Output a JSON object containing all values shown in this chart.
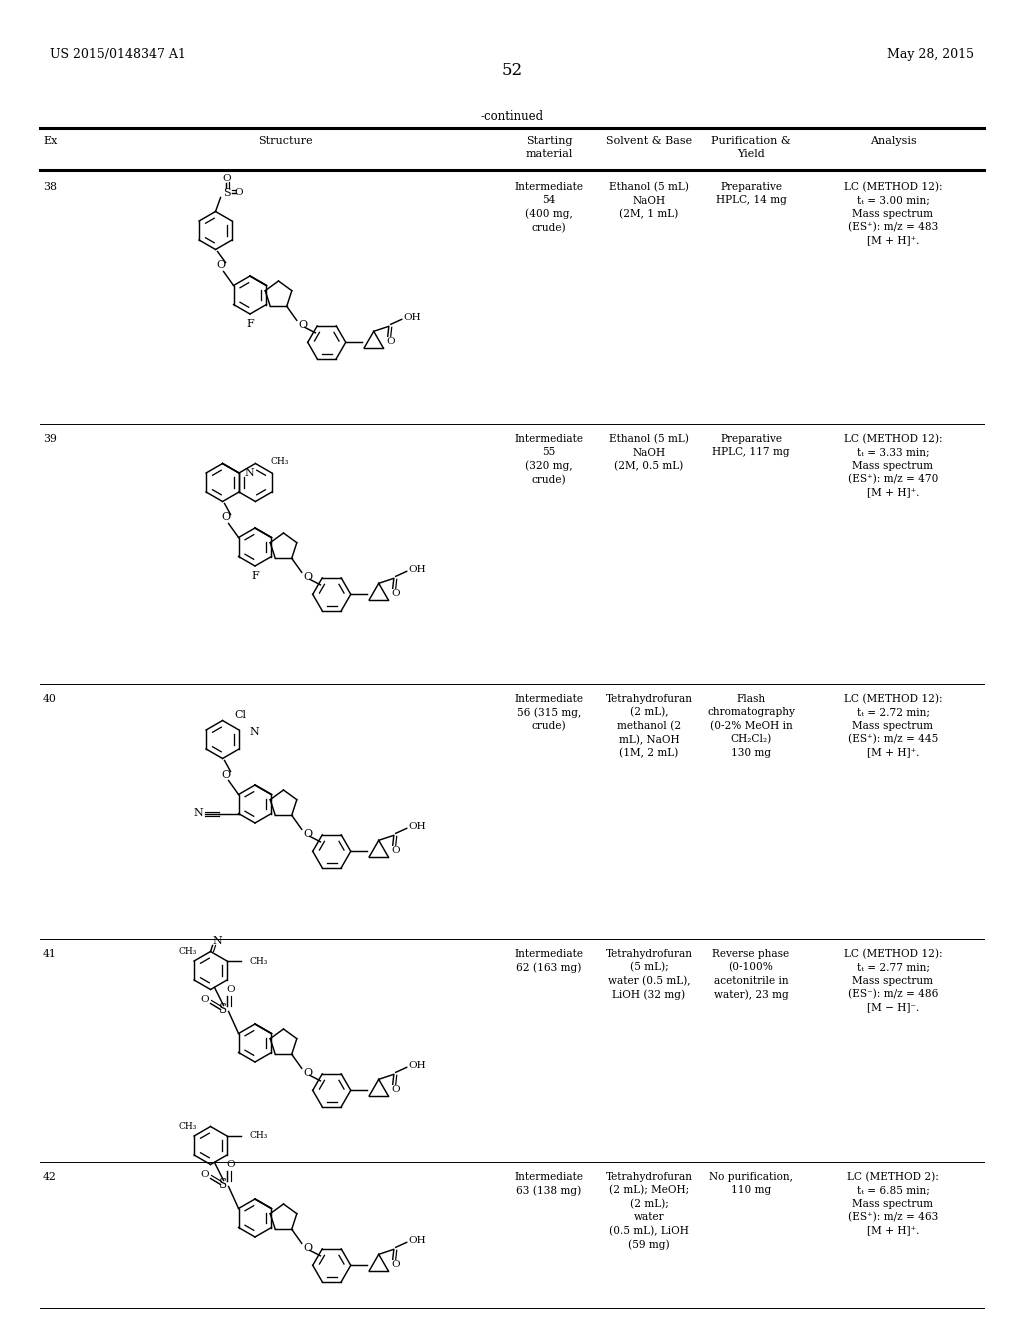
{
  "page_number": "52",
  "patent_number": "US 2015/0148347 A1",
  "patent_date": "May 28, 2015",
  "continued_label": "-continued",
  "col_headers": [
    "Ex",
    "Structure",
    "Starting\nmaterial",
    "Solvent & Base",
    "Purification &\nYield",
    "Analysis"
  ],
  "rows": [
    {
      "ex": "38",
      "starting_material": "Intermediate\n54\n(400 mg,\ncrude)",
      "solvent_base": "Ethanol (5 mL)\nNaOH\n(2M, 1 mL)",
      "purification_yield": "Preparative\nHPLC, 14 mg",
      "analysis": "LC (METHOD 12):\ntₜ = 3.00 min;\nMass spectrum\n(ES⁺): m/z = 483\n[M + H]⁺."
    },
    {
      "ex": "39",
      "starting_material": "Intermediate\n55\n(320 mg,\ncrude)",
      "solvent_base": "Ethanol (5 mL)\nNaOH\n(2M, 0.5 mL)",
      "purification_yield": "Preparative\nHPLC, 117 mg",
      "analysis": "LC (METHOD 12):\ntₜ = 3.33 min;\nMass spectrum\n(ES⁺): m/z = 470\n[M + H]⁺."
    },
    {
      "ex": "40",
      "starting_material": "Intermediate\n56 (315 mg,\ncrude)",
      "solvent_base": "Tetrahydrofuran\n(2 mL),\nmethanol (2\nmL), NaOH\n(1M, 2 mL)",
      "purification_yield": "Flash\nchromatography\n(0-2% MeOH in\nCH₂Cl₂)\n130 mg",
      "analysis": "LC (METHOD 12):\ntₜ = 2.72 min;\nMass spectrum\n(ES⁺): m/z = 445\n[M + H]⁺."
    },
    {
      "ex": "41",
      "starting_material": "Intermediate\n62 (163 mg)",
      "solvent_base": "Tetrahydrofuran\n(5 mL);\nwater (0.5 mL),\nLiOH (32 mg)",
      "purification_yield": "Reverse phase\n(0-100%\nacetonitrile in\nwater), 23 mg",
      "analysis": "LC (METHOD 12):\ntₜ = 2.77 min;\nMass spectrum\n(ES⁻): m/z = 486\n[M − H]⁻."
    },
    {
      "ex": "42",
      "starting_material": "Intermediate\n63 (138 mg)",
      "solvent_base": "Tetrahydrofuran\n(2 mL); MeOH;\n(2 mL);\nwater\n(0.5 mL), LiOH\n(59 mg)",
      "purification_yield": "No purification,\n110 mg",
      "analysis": "LC (METHOD 2):\ntₜ = 6.85 min;\nMass spectrum\n(ES⁺): m/z = 463\n[M + H]⁺."
    }
  ],
  "bg_color": "#ffffff",
  "text_color": "#000000",
  "line_color": "#000000"
}
